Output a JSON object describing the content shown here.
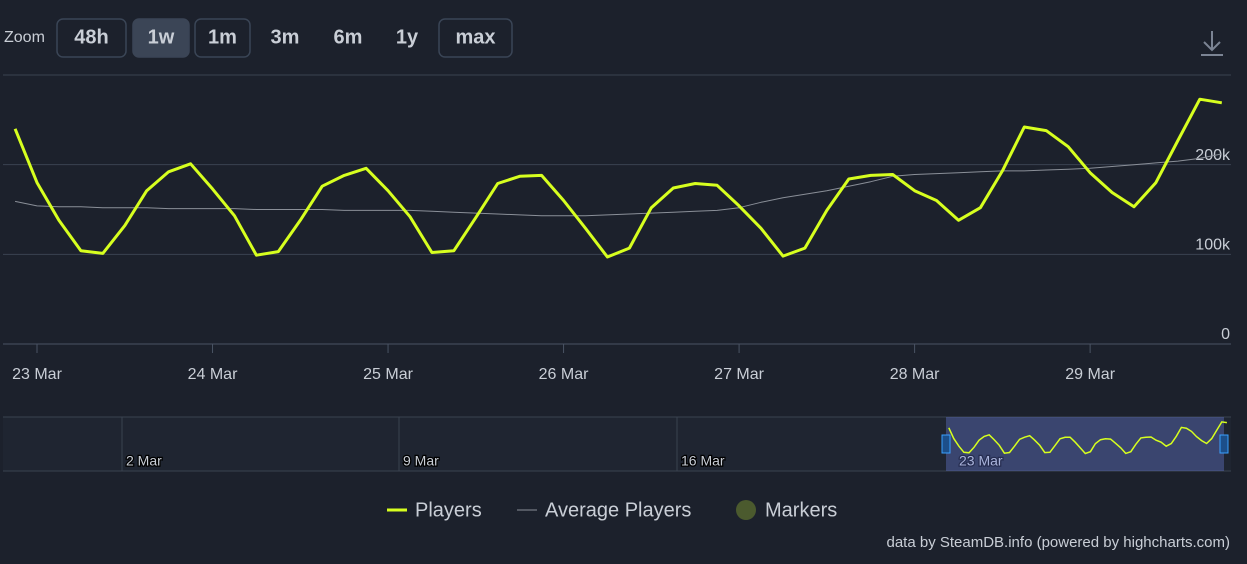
{
  "zoom": {
    "label": "Zoom",
    "buttons": [
      "48h",
      "1w",
      "1m",
      "3m",
      "6m",
      "1y",
      "max"
    ]
  },
  "chart_data": {
    "type": "line",
    "categories": [
      null,
      "23 Mar",
      null,
      null,
      null,
      null,
      null,
      null,
      null,
      "24 Mar",
      null,
      null,
      null,
      null,
      null,
      null,
      null,
      "25 Mar",
      null,
      null,
      null,
      null,
      null,
      null,
      null,
      "26 Mar",
      null,
      null,
      null,
      null,
      null,
      null,
      null,
      "27 Mar",
      null,
      null,
      null,
      null,
      null,
      null,
      null,
      "28 Mar",
      null,
      null,
      null,
      null,
      null,
      null,
      null,
      "29 Mar",
      null,
      null,
      null,
      null,
      null,
      null
    ],
    "series": [
      {
        "name": "Players",
        "color": "#d7ff1f",
        "values": [
          240000,
          180000,
          138000,
          104000,
          101000,
          132000,
          171000,
          192000,
          201000,
          173000,
          143000,
          99000,
          103000,
          138000,
          176000,
          188000,
          196000,
          171000,
          142000,
          102000,
          104000,
          141000,
          179000,
          187000,
          188000,
          160000,
          129000,
          97000,
          107000,
          152000,
          174000,
          179000,
          177000,
          154000,
          129000,
          98000,
          107000,
          149000,
          184000,
          188000,
          189000,
          171000,
          160000,
          138000,
          152000,
          193000,
          242000,
          238000,
          220000,
          191000,
          169000,
          153000,
          180000,
          227000,
          273000,
          269000
        ]
      },
      {
        "name": "Average Players",
        "color": "#8a8f98",
        "values": [
          159000,
          154000,
          153000,
          153000,
          152000,
          152000,
          152000,
          151000,
          151000,
          151000,
          151000,
          150000,
          150000,
          150000,
          150000,
          149000,
          149000,
          149000,
          149000,
          148000,
          147000,
          146000,
          145000,
          144000,
          143000,
          143000,
          143000,
          144000,
          145000,
          146000,
          147000,
          148000,
          149000,
          152000,
          158000,
          163000,
          167000,
          171000,
          176000,
          181000,
          187000,
          189000,
          190000,
          191000,
          192000,
          193000,
          193000,
          194000,
          195000,
          196000,
          198000,
          200000,
          202000,
          204000,
          207000,
          212000
        ]
      }
    ],
    "markers": {
      "name": "Markers",
      "color": "#4b5a2e"
    },
    "ylim": [
      0,
      300000
    ],
    "yticks": [
      0,
      {
        "value": 100000,
        "label": "100k"
      },
      {
        "value": 200000,
        "label": "200k"
      }
    ],
    "grid": true
  },
  "navigator": {
    "labels": [
      "2 Mar",
      "9 Mar",
      "16 Mar",
      "23 Mar"
    ]
  },
  "credits": "data by SteamDB.info (powered by highcharts.com)"
}
